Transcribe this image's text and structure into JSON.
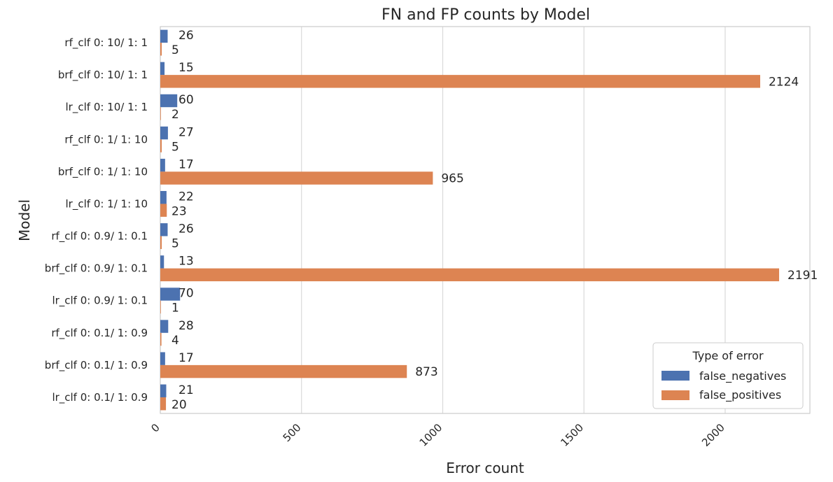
{
  "chart_data": {
    "type": "bar",
    "orientation": "horizontal",
    "title": "FN and FP counts by Model",
    "xlabel": "Error count",
    "ylabel": "Model",
    "xlim": [
      0,
      2300
    ],
    "xticks": [
      0,
      500,
      1000,
      1500,
      2000
    ],
    "grid": true,
    "categories": [
      "rf_clf 0: 10/ 1: 1",
      "brf_clf 0: 10/ 1: 1",
      "lr_clf 0: 10/ 1: 1",
      "rf_clf 0: 1/ 1: 10",
      "brf_clf 0: 1/ 1: 10",
      "lr_clf 0: 1/ 1: 10",
      "rf_clf 0: 0.9/ 1: 0.1",
      "brf_clf 0: 0.9/ 1: 0.1",
      "lr_clf 0: 0.9/ 1: 0.1",
      "rf_clf 0: 0.1/ 1: 0.9",
      "brf_clf 0: 0.1/ 1: 0.9",
      "lr_clf 0: 0.1/ 1: 0.9"
    ],
    "series": [
      {
        "name": "false_negatives",
        "color": "#4c72b0",
        "values": [
          26,
          15,
          60,
          27,
          17,
          22,
          26,
          13,
          70,
          28,
          17,
          21
        ]
      },
      {
        "name": "false_positives",
        "color": "#dd8452",
        "values": [
          5,
          2124,
          2,
          5,
          965,
          23,
          5,
          2191,
          1,
          4,
          873,
          20
        ]
      }
    ],
    "legend": {
      "title": "Type of error",
      "placement": "lower-right"
    }
  }
}
